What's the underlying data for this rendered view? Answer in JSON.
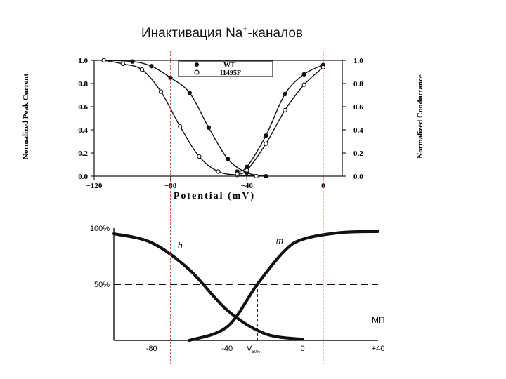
{
  "slide": {
    "title_main": "Инактивация Na",
    "title_sup": "+",
    "title_tail": "-каналов"
  },
  "chart_data": [
    {
      "type": "line",
      "xlabel": "Potential (mV)",
      "ylabel_left": "Normalized Peak Current",
      "ylabel_right": "Normalized Conductance",
      "xlim": [
        -120,
        10
      ],
      "ylim": [
        0,
        1
      ],
      "x_ticks": [
        "−120",
        "−80",
        "−40",
        "0"
      ],
      "y_ticks": [
        "0.0",
        "0.2",
        "0.4",
        "0.6",
        "0.8",
        "1.0"
      ],
      "legend": [
        "WT",
        "I1495F"
      ],
      "series": [
        {
          "name": "WT",
          "kind": "inactivation",
          "x": [
            -115,
            -100,
            -90,
            -80,
            -70,
            -60,
            -50,
            -40,
            -30
          ],
          "y": [
            1.0,
            0.99,
            0.95,
            0.85,
            0.72,
            0.42,
            0.15,
            0.03,
            0.0
          ]
        },
        {
          "name": "I1495F",
          "kind": "inactivation",
          "x": [
            -115,
            -105,
            -95,
            -85,
            -75,
            -65,
            -55,
            -45,
            -35
          ],
          "y": [
            1.0,
            0.97,
            0.92,
            0.73,
            0.43,
            0.17,
            0.04,
            0.01,
            0.0
          ]
        },
        {
          "name": "WT",
          "kind": "activation",
          "x": [
            -45,
            -40,
            -30,
            -20,
            -10,
            0
          ],
          "y": [
            0.04,
            0.08,
            0.35,
            0.71,
            0.88,
            0.96
          ]
        },
        {
          "name": "I1495F",
          "kind": "activation",
          "x": [
            -45,
            -40,
            -30,
            -20,
            -10,
            0
          ],
          "y": [
            0.02,
            0.05,
            0.28,
            0.57,
            0.79,
            0.94
          ]
        }
      ]
    },
    {
      "type": "line",
      "xlabel": "МП",
      "xlim": [
        -100,
        40
      ],
      "ylim": [
        0,
        100
      ],
      "y_ticks": [
        "100%",
        "50%"
      ],
      "x_ticks": [
        "-80",
        "-40",
        "0",
        "+40"
      ],
      "vline_label": "V",
      "vline_label_sub": "50%",
      "curve_labels": [
        "h",
        "m"
      ],
      "half_level": 50,
      "v50": -24,
      "series": [
        {
          "name": "h",
          "x": [
            -100,
            -80,
            -60,
            -40,
            -20,
            0
          ],
          "y": [
            95,
            87,
            63,
            27,
            6,
            1
          ]
        },
        {
          "name": "m",
          "x": [
            -60,
            -40,
            -24,
            -10,
            0,
            20,
            40
          ],
          "y": [
            0,
            12,
            50,
            79,
            90,
            96,
            97
          ]
        }
      ]
    }
  ]
}
